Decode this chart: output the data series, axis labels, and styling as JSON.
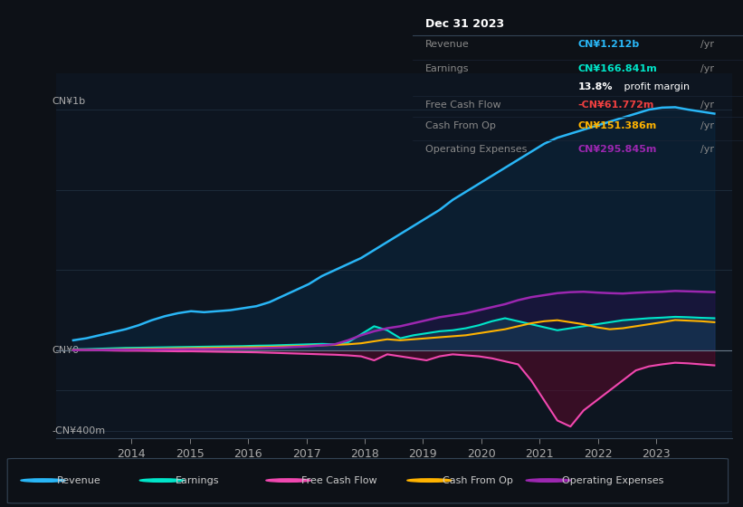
{
  "bg_color": "#0d1117",
  "chart_bg": "#0d1520",
  "y_label_top": "CN¥1b",
  "y_label_zero": "CN¥0",
  "y_label_bottom": "-CN¥400m",
  "grid_color": "#1e2d3d",
  "zero_line_color": "#6a7a8a",
  "revenue_color": "#29b6f6",
  "earnings_color": "#00e5c9",
  "fcf_color": "#f048b0",
  "cashfromop_color": "#ffb300",
  "opex_color": "#9c27b0",
  "revenue_fill": "#0a2a45",
  "fcf_fill_neg": "#5a0a2a",
  "opex_fill": "#2a0a4a",
  "info_box": {
    "date": "Dec 31 2023",
    "revenue_label": "Revenue",
    "revenue_value": "CN¥1.212b",
    "revenue_color": "#29b6f6",
    "earnings_label": "Earnings",
    "earnings_value": "CN¥166.841m",
    "earnings_color": "#00e5c9",
    "margin_text": "13.8% profit margin",
    "fcf_label": "Free Cash Flow",
    "fcf_value": "-CN¥61.772m",
    "fcf_color": "#f04040",
    "cashop_label": "Cash From Op",
    "cashop_value": "CN¥151.386m",
    "cashop_color": "#ffb300",
    "opex_label": "Operating Expenses",
    "opex_value": "CN¥295.845m",
    "opex_color": "#9c27b0"
  },
  "legend": [
    {
      "label": "Revenue",
      "color": "#29b6f6"
    },
    {
      "label": "Earnings",
      "color": "#00e5c9"
    },
    {
      "label": "Free Cash Flow",
      "color": "#f048b0"
    },
    {
      "label": "Cash From Op",
      "color": "#ffb300"
    },
    {
      "label": "Operating Expenses",
      "color": "#9c27b0"
    }
  ]
}
